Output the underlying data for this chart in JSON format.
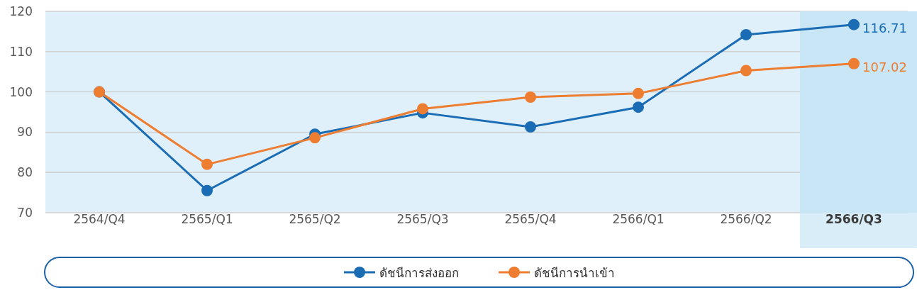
{
  "chart_data": {
    "type": "line",
    "categories": [
      "2564/Q4",
      "2565/Q1",
      "2565/Q2",
      "2565/Q3",
      "2565/Q4",
      "2566/Q1",
      "2566/Q2",
      "2566/Q3"
    ],
    "series": [
      {
        "name": "ดัชนีการส่งออก",
        "color": "#1a6db5",
        "values": [
          100,
          75.5,
          89.5,
          94.8,
          91.3,
          96.2,
          114.2,
          116.71
        ],
        "value_labels": [
          null,
          null,
          null,
          null,
          null,
          null,
          null,
          "116.71"
        ]
      },
      {
        "name": "ดัชนีการนำเข้า",
        "color": "#ed7d31",
        "values": [
          100,
          82.0,
          88.6,
          95.8,
          98.7,
          99.6,
          105.3,
          107.02
        ],
        "value_labels": [
          null,
          null,
          null,
          null,
          null,
          null,
          null,
          "107.02"
        ]
      }
    ],
    "ylim": [
      70,
      120
    ],
    "yticks": [
      70,
      80,
      90,
      100,
      110,
      120
    ],
    "grid": "y",
    "legend": "bottom",
    "marker": "circle",
    "bands": [
      {
        "axis": "x",
        "from": "2566/Q3",
        "to": "2566/Q3",
        "color": "#c8e6f5"
      }
    ]
  }
}
